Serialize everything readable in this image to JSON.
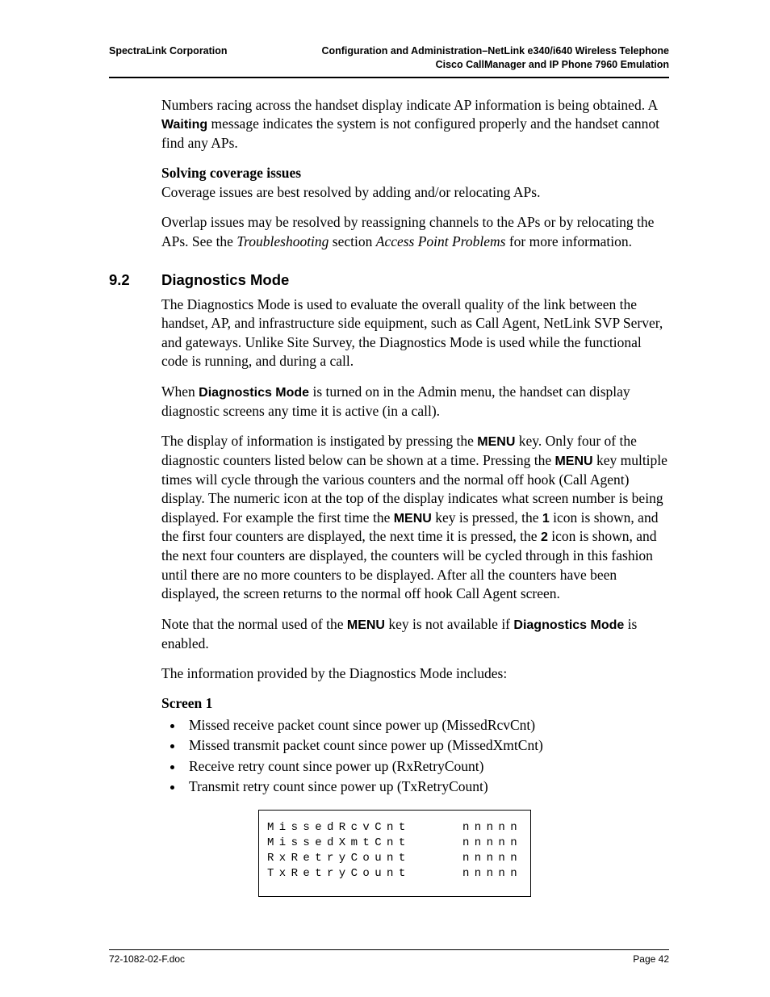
{
  "header": {
    "left": "SpectraLink Corporation",
    "right1": "Configuration and Administration–NetLink e340/i640 Wireless Telephone",
    "right2": "Cisco CallManager and IP Phone 7960 Emulation"
  },
  "intro": {
    "p1a": "Numbers racing across the handset display indicate AP information is being obtained. A ",
    "p1b": "Waiting",
    "p1c": " message indicates the system is not configured properly and the handset cannot find any APs.",
    "sub": "Solving coverage issues",
    "p2": "Coverage issues are best resolved by adding and/or relocating APs.",
    "p3a": "Overlap issues may be resolved by reassigning channels to the APs or by relocating the APs. See the ",
    "p3b": "Troubleshooting",
    "p3c": " section ",
    "p3d": "Access Point Problems",
    "p3e": " for more information."
  },
  "section": {
    "num": "9.2",
    "title": "Diagnostics Mode",
    "p1": "The Diagnostics Mode is used to evaluate the overall quality of the link between the handset, AP, and infrastructure side equipment, such as Call Agent, NetLink SVP Server, and gateways.  Unlike Site Survey, the Diagnostics Mode is used while the functional code is running, and during a call.",
    "p2a": "When ",
    "p2b": "Diagnostics Mode",
    "p2c": " is turned on in the Admin menu, the handset can display diagnostic screens any time it is active (in a call).",
    "p3a": "The display of information is instigated by pressing the ",
    "p3b": "MENU",
    "p3c": " key. Only four of the diagnostic counters listed below can be shown at a time. Pressing the ",
    "p3d": "MENU",
    "p3e": " key multiple times will cycle through the various counters and the normal off hook (Call Agent) display. The numeric icon at the top of the display indicates what screen number is being displayed. For example the first time the ",
    "p3f": "MENU",
    "p3g": " key is pressed, the ",
    "p3h": "1",
    "p3i": " icon is shown, and the first four counters are displayed, the next time it is pressed, the ",
    "p3j": "2",
    "p3k": " icon is shown, and the next four counters are displayed, the counters will be cycled through in this fashion until there are no more counters to be displayed. After all the counters have been displayed, the screen returns to the normal off hook Call Agent screen.",
    "p4a": "Note that the normal used of the ",
    "p4b": "MENU",
    "p4c": " key is not available if ",
    "p4d": "Diagnostics Mode",
    "p4e": " is enabled.",
    "p5": "The information provided by the Diagnostics Mode includes:",
    "screen1": "Screen 1",
    "bullets": [
      "Missed receive packet count since power up (MissedRcvCnt)",
      "Missed transmit packet count since power up (MissedXmtCnt)",
      "Receive retry count since power up (RxRetryCount)",
      "Transmit retry count since power up (TxRetryCount)"
    ],
    "display": [
      {
        "l": "MissedRcvCnt",
        "r": "nnnnn"
      },
      {
        "l": "MissedXmtCnt",
        "r": "nnnnn"
      },
      {
        "l": "RxRetryCount",
        "r": "nnnnn"
      },
      {
        "l": "TxRetryCount",
        "r": "nnnnn"
      }
    ]
  },
  "footer": {
    "left": "72-1082-02-F.doc",
    "right": "Page 42"
  }
}
